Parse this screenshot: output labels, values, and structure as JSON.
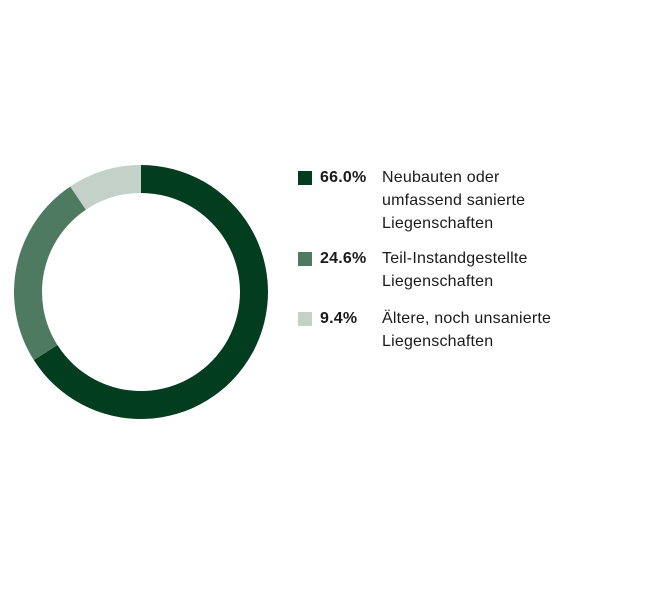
{
  "chart_data": {
    "type": "pie",
    "subtype": "donut",
    "series": [
      {
        "label_pct": "66.0%",
        "name": "Neubauten oder umfassend sanierte Liegenschaften",
        "value": 66.0,
        "color": "#033d1f"
      },
      {
        "label_pct": "24.6%",
        "name": "Teil-Instandgestellte Liegenschaften",
        "value": 24.6,
        "color": "#4f7a62"
      },
      {
        "label_pct": "9.4%",
        "name": "Ältere, noch unsanierte Liegenschaften",
        "value": 9.4,
        "color": "#c3d1c8"
      }
    ],
    "legend_position": "right"
  }
}
